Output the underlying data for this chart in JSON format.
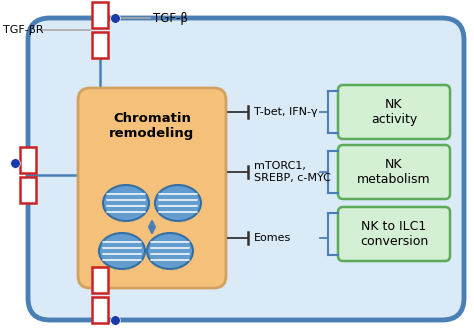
{
  "bg_color": "#ffffff",
  "cell_bg": "#daeaf7",
  "cell_border": "#4a7fb5",
  "chromatin_bg": "#f5c07a",
  "chromatin_border": "#d4a060",
  "nk_box_bg": "#d4f0d4",
  "nk_box_border": "#5aaa5a",
  "receptor_color": "#cc2222",
  "dot_color": "#1a3aaa",
  "line_color": "#aaaaaa",
  "chromatin_label": "Chromatin\nremodeling",
  "nk_labels": [
    "NK\nactivity",
    "NK\nmetabolism",
    "NK to ILC1\nconversion"
  ],
  "pathway_labels": [
    "T-bet, IFN-γ",
    "mTORC1,\nSREBP, c-MYC",
    "Eomes"
  ],
  "tgfbr_label": "TGF-βR",
  "tgfb_label": "TGF-β",
  "circle_color": "#5b9bd5",
  "circle_line": "#2e6da4",
  "arrow_blue": "#4a7fb5",
  "bracket_color": "#4a7fb5",
  "inhibit_color": "#333333"
}
